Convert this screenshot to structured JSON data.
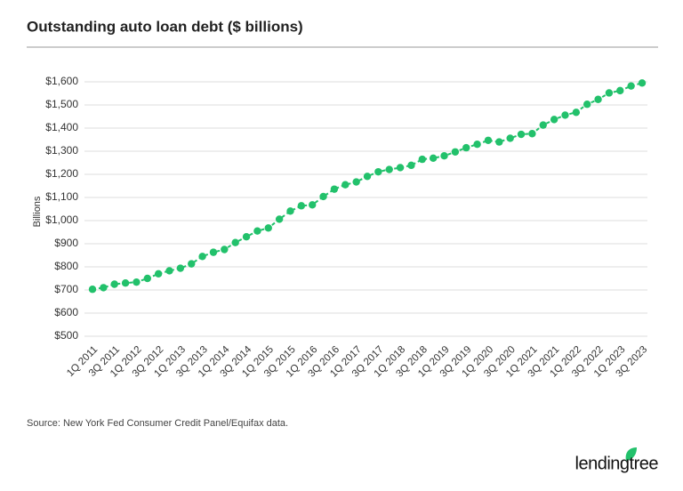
{
  "chart_data": {
    "type": "line",
    "title": "Outstanding auto loan debt ($ billions)",
    "y_label": "Billions",
    "source": "Source: New York Fed Consumer Credit Panel/Equifax data.",
    "logo": "lendingtree",
    "color": "#22c16b",
    "categories": [
      "1Q 2011",
      null,
      "3Q 2011",
      null,
      "1Q 2012",
      null,
      "3Q 2012",
      null,
      "1Q 2013",
      null,
      "3Q 2013",
      null,
      "1Q 2014",
      null,
      "3Q 2014",
      null,
      "1Q 2015",
      null,
      "3Q 2015",
      null,
      "1Q 2016",
      null,
      "3Q 2016",
      null,
      "1Q 2017",
      null,
      "3Q 2017",
      null,
      "1Q 2018",
      null,
      "3Q 2018",
      null,
      "1Q 2019",
      null,
      "3Q 2019",
      null,
      "1Q 2020",
      null,
      "3Q 2020",
      null,
      "1Q 2021",
      null,
      "3Q 2021",
      null,
      "1Q 2022",
      null,
      "3Q 2022",
      null,
      "1Q 2023",
      null,
      "3Q 2023"
    ],
    "values": [
      703,
      710,
      725,
      730,
      734,
      750,
      770,
      783,
      794,
      813,
      845,
      863,
      875,
      905,
      930,
      955,
      968,
      1006,
      1041,
      1064,
      1068,
      1104,
      1136,
      1155,
      1167,
      1191,
      1211,
      1221,
      1229,
      1239,
      1265,
      1270,
      1280,
      1297,
      1315,
      1330,
      1347,
      1340,
      1356,
      1373,
      1376,
      1413,
      1437,
      1456,
      1468,
      1503,
      1524,
      1552,
      1562,
      1582,
      1595
    ],
    "ylim": [
      480,
      1620
    ],
    "yticks": [
      {
        "value": 500,
        "label": "$500"
      },
      {
        "value": 600,
        "label": "$600"
      },
      {
        "value": 700,
        "label": "$700"
      },
      {
        "value": 800,
        "label": "$800"
      },
      {
        "value": 900,
        "label": "$900"
      },
      {
        "value": 1000,
        "label": "$1,000"
      },
      {
        "value": 1100,
        "label": "$1,100"
      },
      {
        "value": 1200,
        "label": "$1,200"
      },
      {
        "value": 1300,
        "label": "$1,300"
      },
      {
        "value": 1400,
        "label": "$1,400"
      },
      {
        "value": 1500,
        "label": "$1,500"
      },
      {
        "value": 1600,
        "label": "$1,600"
      }
    ],
    "grid": true
  }
}
